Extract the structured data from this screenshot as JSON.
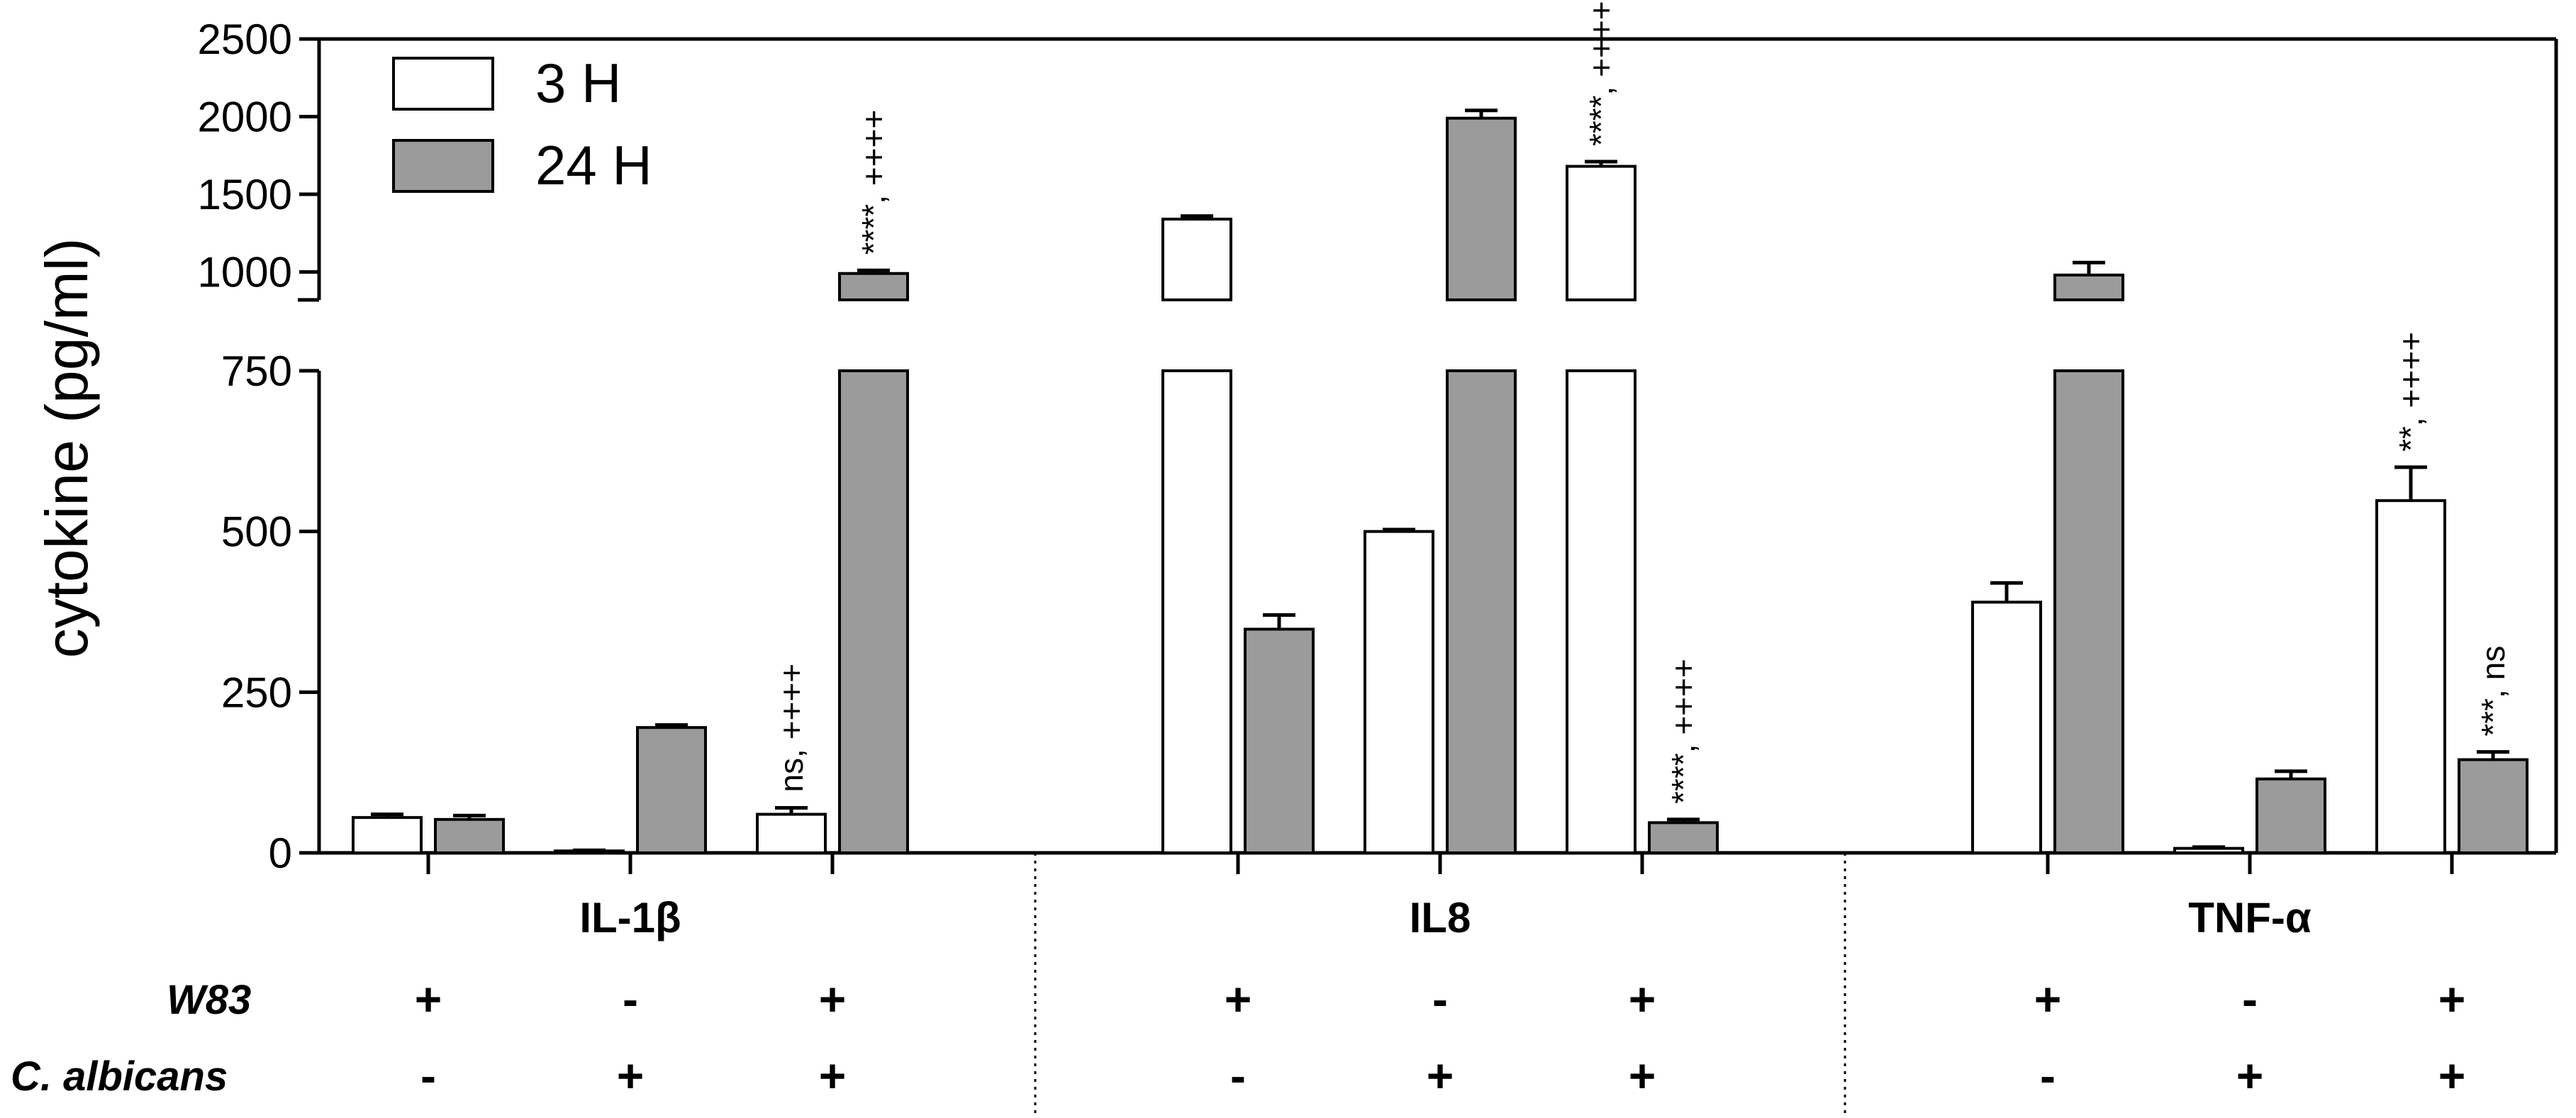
{
  "chart_data": {
    "type": "bar",
    "title": "",
    "xlabel": "",
    "ylabel": "cytokine (pg/ml)",
    "y_axis": {
      "segments": [
        {
          "range": [
            0,
            750
          ],
          "ticks": [
            0,
            250,
            500,
            750
          ]
        },
        {
          "range": [
            820,
            2500
          ],
          "ticks": [
            1000,
            1500,
            2000,
            2500
          ]
        }
      ],
      "tick_labels": [
        "0",
        "250",
        "500",
        "750",
        "1000",
        "1500",
        "2000",
        "2500"
      ],
      "broken": true
    },
    "legend": {
      "position": "top-left",
      "entries": [
        {
          "name": "3  H",
          "color": "#ffffff"
        },
        {
          "name": "24 H",
          "color": "#9b9b9b"
        }
      ]
    },
    "groups": [
      {
        "name": "IL-1β",
        "conditions": [
          {
            "w83": "+",
            "c_albicans": "-",
            "bars": [
              {
                "series": "3  H",
                "value": 55,
                "error": 5,
                "annotation": ""
              },
              {
                "series": "24 H",
                "value": 52,
                "error": 6,
                "annotation": ""
              }
            ]
          },
          {
            "w83": "-",
            "c_albicans": "+",
            "bars": [
              {
                "series": "3  H",
                "value": 3,
                "error": 1,
                "annotation": ""
              },
              {
                "series": "24 H",
                "value": 195,
                "error": 4,
                "annotation": ""
              }
            ]
          },
          {
            "w83": "+",
            "c_albicans": "+",
            "bars": [
              {
                "series": "3  H",
                "value": 60,
                "error": 10,
                "annotation": "ns, ++++"
              },
              {
                "series": "24 H",
                "value": 990,
                "error": 20,
                "annotation": "****, ++++"
              }
            ]
          }
        ]
      },
      {
        "name": "IL8",
        "conditions": [
          {
            "w83": "+",
            "c_albicans": "-",
            "bars": [
              {
                "series": "3  H",
                "value": 1340,
                "error": 20,
                "annotation": ""
              },
              {
                "series": "24 H",
                "value": 348,
                "error": 22,
                "annotation": ""
              }
            ]
          },
          {
            "w83": "-",
            "c_albicans": "+",
            "bars": [
              {
                "series": "3  H",
                "value": 500,
                "error": 3,
                "annotation": ""
              },
              {
                "series": "24 H",
                "value": 1990,
                "error": 50,
                "annotation": ""
              }
            ]
          },
          {
            "w83": "+",
            "c_albicans": "+",
            "bars": [
              {
                "series": "3  H",
                "value": 1680,
                "error": 30,
                "annotation": "****, ++++"
              },
              {
                "series": "24 H",
                "value": 47,
                "error": 5,
                "annotation": "****, ++++"
              }
            ]
          }
        ]
      },
      {
        "name": "TNF-α",
        "conditions": [
          {
            "w83": "+",
            "c_albicans": "-",
            "bars": [
              {
                "series": "3  H",
                "value": 390,
                "error": 30,
                "annotation": ""
              },
              {
                "series": "24 H",
                "value": 980,
                "error": 80,
                "annotation": ""
              }
            ]
          },
          {
            "w83": "-",
            "c_albicans": "+",
            "bars": [
              {
                "series": "3  H",
                "value": 7,
                "error": 2,
                "annotation": ""
              },
              {
                "series": "24 H",
                "value": 115,
                "error": 12,
                "annotation": ""
              }
            ]
          },
          {
            "w83": "+",
            "c_albicans": "+",
            "bars": [
              {
                "series": "3  H",
                "value": 548,
                "error": 52,
                "annotation": "**, ++++"
              },
              {
                "series": "24 H",
                "value": 145,
                "error": 12,
                "annotation": "***, ns"
              }
            ]
          }
        ]
      }
    ],
    "condition_rows": [
      {
        "label": "W83",
        "key": "w83"
      },
      {
        "label": "C. albicans",
        "key": "c_albicans"
      }
    ]
  }
}
